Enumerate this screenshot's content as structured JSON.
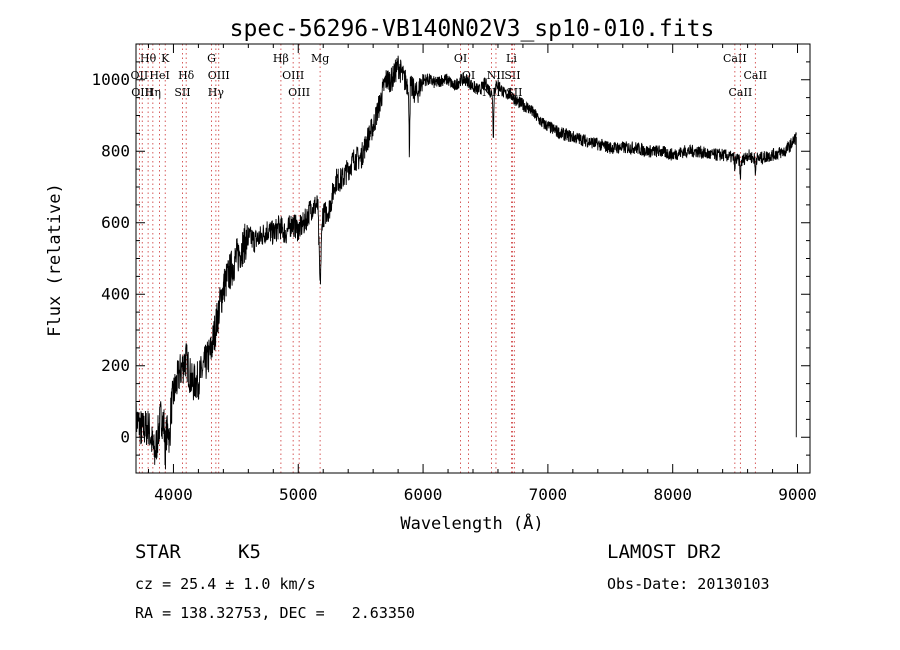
{
  "chart_data": {
    "type": "line",
    "title": "spec-56296-VB140N02V3_sp10-010.fits",
    "xlabel": "Wavelength (Å)",
    "ylabel": "Flux (relative)",
    "xlim": [
      3700,
      9100
    ],
    "ylim": [
      -100,
      1100
    ],
    "x_ticks": [
      4000,
      5000,
      6000,
      7000,
      8000,
      9000
    ],
    "y_ticks": [
      0,
      200,
      400,
      600,
      800,
      1000
    ],
    "grid": false,
    "series": [
      {
        "x": [
          3700,
          3750,
          3800,
          3850,
          3900,
          3950,
          4000,
          4050,
          4100,
          4150,
          4200,
          4250,
          4300,
          4350,
          4400,
          4450,
          4500,
          4550,
          4600,
          4650,
          4700,
          4750,
          4800,
          4850,
          4900,
          4950,
          5000,
          5050,
          5100,
          5150,
          5200,
          5250,
          5300,
          5350,
          5400,
          5450,
          5500,
          5550,
          5600,
          5650,
          5700,
          5750,
          5800,
          5850,
          5900,
          5950,
          6000,
          6050,
          6100,
          6150,
          6200,
          6250,
          6300,
          6350,
          6400,
          6450,
          6500,
          6550,
          6600,
          6650,
          6700,
          6750,
          6800,
          6850,
          6900,
          6950,
          7000,
          7100,
          7200,
          7300,
          7400,
          7500,
          7600,
          7700,
          7800,
          7900,
          8000,
          8100,
          8200,
          8300,
          8400,
          8500,
          8550,
          8600,
          8650,
          8700,
          8800,
          8900,
          8950,
          8990
        ],
        "values": [
          50,
          20,
          30,
          -50,
          60,
          10,
          120,
          180,
          220,
          150,
          160,
          200,
          240,
          330,
          420,
          460,
          500,
          530,
          560,
          550,
          560,
          580,
          570,
          590,
          570,
          600,
          580,
          600,
          640,
          650,
          620,
          640,
          720,
          720,
          750,
          780,
          780,
          830,
          870,
          930,
          1000,
          1000,
          1040,
          1000,
          980,
          960,
          1000,
          1000,
          990,
          1000,
          1000,
          980,
          1000,
          1000,
          980,
          970,
          990,
          960,
          990,
          960,
          960,
          940,
          930,
          920,
          900,
          880,
          870,
          850,
          840,
          830,
          820,
          810,
          810,
          810,
          800,
          800,
          790,
          800,
          800,
          790,
          790,
          780,
          770,
          790,
          780,
          780,
          790,
          800,
          820,
          840
        ]
      }
    ],
    "line_markers": [
      {
        "label": "Hθ",
        "x": 3797,
        "row": 0
      },
      {
        "label": "K",
        "x": 3934,
        "row": 0
      },
      {
        "label": "G",
        "x": 4305,
        "row": 0
      },
      {
        "label": "Hβ",
        "x": 4861,
        "row": 0
      },
      {
        "label": "Mg",
        "x": 5175,
        "row": 0
      },
      {
        "label": "OI",
        "x": 6300,
        "row": 0
      },
      {
        "label": "Li",
        "x": 6708,
        "row": 0
      },
      {
        "label": "CaII",
        "x": 8498,
        "row": 0
      },
      {
        "label": "OII",
        "x": 3727,
        "row": 1
      },
      {
        "label": "HeI",
        "x": 3889,
        "row": 1
      },
      {
        "label": "Hδ",
        "x": 4102,
        "row": 1
      },
      {
        "label": "OIII",
        "x": 4363,
        "row": 1
      },
      {
        "label": "OIII",
        "x": 4959,
        "row": 1
      },
      {
        "label": "OI",
        "x": 6364,
        "row": 1
      },
      {
        "label": "NII",
        "x": 6584,
        "row": 1
      },
      {
        "label": "SII",
        "x": 6716,
        "row": 1
      },
      {
        "label": "CaII",
        "x": 8662,
        "row": 1
      },
      {
        "label": "OIII",
        "x": 3750,
        "row": 2
      },
      {
        "label": "Hη",
        "x": 3835,
        "row": 2
      },
      {
        "label": "SII",
        "x": 4072,
        "row": 2
      },
      {
        "label": "Hγ",
        "x": 4340,
        "row": 2
      },
      {
        "label": "OIII",
        "x": 5007,
        "row": 2
      },
      {
        "label": "NII",
        "x": 6548,
        "row": 2
      },
      {
        "label": "SII",
        "x": 6731,
        "row": 2
      },
      {
        "label": "CaII",
        "x": 8542,
        "row": 2
      }
    ]
  },
  "info": {
    "class_label": "STAR",
    "subclass": "K5",
    "survey": "LAMOST DR2",
    "cz": "cz = 25.4 ± 1.0 km/s",
    "obs_date": "Obs-Date: 20130103",
    "coords": "RA = 138.32753, DEC =   2.63350"
  }
}
